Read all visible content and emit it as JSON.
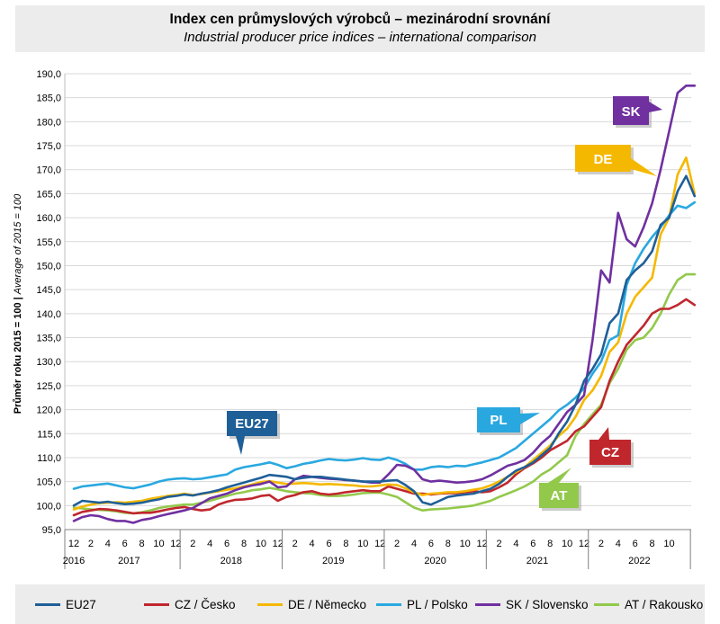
{
  "header": {
    "title": "Index cen průmyslových výrobců – mezinárodní srovnání",
    "subtitle": "Industrial producer price indices – international comparison"
  },
  "chart_data": {
    "type": "line",
    "ylabel_main": "Průměr roku 2015 = 100 | ",
    "ylabel_italic": "Average of 2015 = 100",
    "ylim": [
      95,
      190
    ],
    "yticks": [
      "95,0",
      "100,0",
      "105,0",
      "110,0",
      "115,0",
      "120,0",
      "125,0",
      "130,0",
      "135,0",
      "140,0",
      "145,0",
      "150,0",
      "155,0",
      "160,0",
      "165,0",
      "170,0",
      "175,0",
      "180,0",
      "185,0",
      "190,0"
    ],
    "xtick_months": [
      "12",
      "2",
      "4",
      "6",
      "8",
      "10",
      "12",
      "2",
      "4",
      "6",
      "8",
      "10",
      "12",
      "2",
      "4",
      "6",
      "8",
      "10",
      "12",
      "2",
      "4",
      "6",
      "8",
      "10",
      "12",
      "2",
      "4",
      "6",
      "8",
      "10",
      "12",
      "2",
      "4",
      "6",
      "8",
      "10"
    ],
    "years": [
      "2016",
      "2017",
      "2018",
      "2019",
      "2020",
      "2021",
      "2022"
    ],
    "grid": true,
    "legend_position": "bottom",
    "series": [
      {
        "name": "EU27",
        "color": "#1f5f98",
        "callout": "EU27",
        "values": [
          100.0,
          101.0,
          100.8,
          100.6,
          100.8,
          100.5,
          100.3,
          100.4,
          100.6,
          101.0,
          101.3,
          101.8,
          102.0,
          102.3,
          102.1,
          102.5,
          102.8,
          103.2,
          103.8,
          104.3,
          104.8,
          105.3,
          105.8,
          106.4,
          106.2,
          106.0,
          105.5,
          105.8,
          106.0,
          106.0,
          105.8,
          105.6,
          105.4,
          105.2,
          105.0,
          105.0,
          105.0,
          105.2,
          105.3,
          104.3,
          103.0,
          100.7,
          100.2,
          101.0,
          101.8,
          102.1,
          102.3,
          102.5,
          103.0,
          103.5,
          104.5,
          106.0,
          107.3,
          108.0,
          109.0,
          110.5,
          112.0,
          115.0,
          117.5,
          121.0,
          126.0,
          128.5,
          131.5,
          138.0,
          140.0,
          147.0,
          149.0,
          150.5,
          153.0,
          158.5,
          160.0,
          165.5,
          168.7,
          164.5
        ]
      },
      {
        "name": "CZ / Česko",
        "color": "#c0272d",
        "callout": "CZ",
        "values": [
          98.0,
          98.7,
          99.0,
          99.3,
          99.2,
          99.0,
          98.7,
          98.4,
          98.5,
          98.5,
          98.8,
          99.2,
          99.5,
          99.7,
          99.3,
          99.0,
          99.2,
          100.2,
          100.8,
          101.2,
          101.3,
          101.5,
          102.0,
          102.2,
          101.0,
          101.8,
          102.2,
          102.8,
          103.0,
          102.5,
          102.3,
          102.5,
          102.8,
          103.0,
          103.2,
          103.0,
          103.0,
          104.0,
          103.5,
          103.0,
          102.5,
          102.5,
          102.3,
          102.5,
          102.6,
          102.6,
          102.8,
          103.0,
          102.8,
          103.0,
          103.8,
          104.8,
          106.5,
          107.8,
          108.8,
          110.0,
          111.5,
          112.5,
          113.5,
          115.5,
          116.5,
          118.5,
          120.5,
          126.0,
          130.0,
          133.5,
          135.5,
          137.5,
          140.0,
          141.0,
          141.0,
          141.8,
          143.0,
          141.8
        ]
      },
      {
        "name": "DE / Německo",
        "color": "#f5b800",
        "callout": "DE",
        "values": [
          99.2,
          99.8,
          100.2,
          100.5,
          100.6,
          100.7,
          100.6,
          100.8,
          101.0,
          101.4,
          101.7,
          102.0,
          102.2,
          102.5,
          102.2,
          102.4,
          102.7,
          103.0,
          103.3,
          103.6,
          104.0,
          104.4,
          104.9,
          105.1,
          104.8,
          104.5,
          104.6,
          104.7,
          104.6,
          104.4,
          104.5,
          104.4,
          104.3,
          104.2,
          104.0,
          104.0,
          104.2,
          104.4,
          104.3,
          103.6,
          102.8,
          102.2,
          102.5,
          102.6,
          102.8,
          102.8,
          103.0,
          103.3,
          103.6,
          104.2,
          105.0,
          106.0,
          107.0,
          108.0,
          109.5,
          111.0,
          112.5,
          114.5,
          116.0,
          118.5,
          122.0,
          124.0,
          127.0,
          132.0,
          134.0,
          140.0,
          143.5,
          145.5,
          147.5,
          156.5,
          160.0,
          169.0,
          172.5,
          165.0
        ]
      },
      {
        "name": "PL / Polsko",
        "color": "#29a8e0",
        "callout": "PL",
        "values": [
          103.5,
          104.0,
          104.2,
          104.4,
          104.6,
          104.2,
          103.8,
          103.6,
          104.0,
          104.4,
          105.0,
          105.4,
          105.6,
          105.7,
          105.5,
          105.6,
          105.9,
          106.2,
          106.5,
          107.5,
          108.0,
          108.3,
          108.6,
          109.0,
          108.5,
          107.8,
          108.2,
          108.7,
          109.0,
          109.4,
          109.7,
          109.5,
          109.4,
          109.6,
          109.9,
          109.6,
          109.5,
          110.0,
          109.5,
          108.7,
          107.5,
          107.5,
          108.0,
          108.2,
          108.0,
          108.3,
          108.2,
          108.6,
          109.0,
          109.5,
          110.0,
          111.0,
          112.0,
          113.5,
          115.0,
          116.5,
          118.0,
          119.8,
          121.0,
          122.5,
          124.5,
          127.5,
          130.0,
          134.5,
          135.5,
          146.0,
          150.5,
          153.5,
          156.0,
          158.0,
          160.5,
          162.5,
          162.0,
          163.2
        ]
      },
      {
        "name": "SK / Slovensko",
        "color": "#7030a0",
        "callout": "SK",
        "values": [
          96.8,
          97.6,
          98.0,
          97.8,
          97.2,
          96.8,
          96.8,
          96.4,
          97.0,
          97.3,
          97.8,
          98.2,
          98.6,
          99.0,
          99.5,
          100.5,
          101.5,
          102.0,
          102.5,
          103.2,
          103.8,
          104.2,
          104.5,
          105.0,
          103.8,
          104.0,
          105.5,
          106.2,
          106.0,
          105.8,
          105.6,
          105.5,
          105.3,
          105.2,
          105.0,
          104.8,
          104.8,
          106.5,
          108.5,
          108.3,
          107.5,
          105.5,
          105.0,
          105.2,
          105.0,
          104.8,
          104.9,
          105.1,
          105.5,
          106.3,
          107.3,
          108.3,
          108.8,
          109.5,
          111.0,
          113.0,
          114.5,
          117.0,
          119.5,
          121.0,
          123.0,
          134.5,
          149.0,
          146.5,
          161.0,
          155.5,
          154.0,
          158.0,
          163.0,
          170.0,
          178.0,
          186.0,
          187.5,
          187.5
        ]
      },
      {
        "name": "AT / Rakousko",
        "color": "#92c94b",
        "callout": "AT",
        "values": [
          99.6,
          99.4,
          99.2,
          99.1,
          99.0,
          98.8,
          98.5,
          98.4,
          98.6,
          99.0,
          99.5,
          99.8,
          100.0,
          100.2,
          100.2,
          100.6,
          101.0,
          101.5,
          102.0,
          102.5,
          102.8,
          103.2,
          103.4,
          103.7,
          103.4,
          103.0,
          102.8,
          102.6,
          102.5,
          102.2,
          102.0,
          102.0,
          102.1,
          102.3,
          102.6,
          102.7,
          102.7,
          102.3,
          101.8,
          100.7,
          99.6,
          99.0,
          99.2,
          99.3,
          99.4,
          99.6,
          99.8,
          100.0,
          100.5,
          101.0,
          101.8,
          102.5,
          103.2,
          104.0,
          105.0,
          106.5,
          107.5,
          109.0,
          110.5,
          114.5,
          117.0,
          119.0,
          121.0,
          125.5,
          128.5,
          132.5,
          134.5,
          135.0,
          137.0,
          140.0,
          144.0,
          147.0,
          148.2,
          148.2
        ]
      }
    ]
  },
  "legend": [
    {
      "label": "EU27",
      "color": "#1f5f98"
    },
    {
      "label": "CZ / Česko",
      "color": "#c0272d"
    },
    {
      "label": "DE / Německo",
      "color": "#f5b800"
    },
    {
      "label": "PL / Polsko",
      "color": "#29a8e0"
    },
    {
      "label": "SK / Slovensko",
      "color": "#7030a0"
    },
    {
      "label": "AT / Rakousko",
      "color": "#92c94b"
    }
  ]
}
